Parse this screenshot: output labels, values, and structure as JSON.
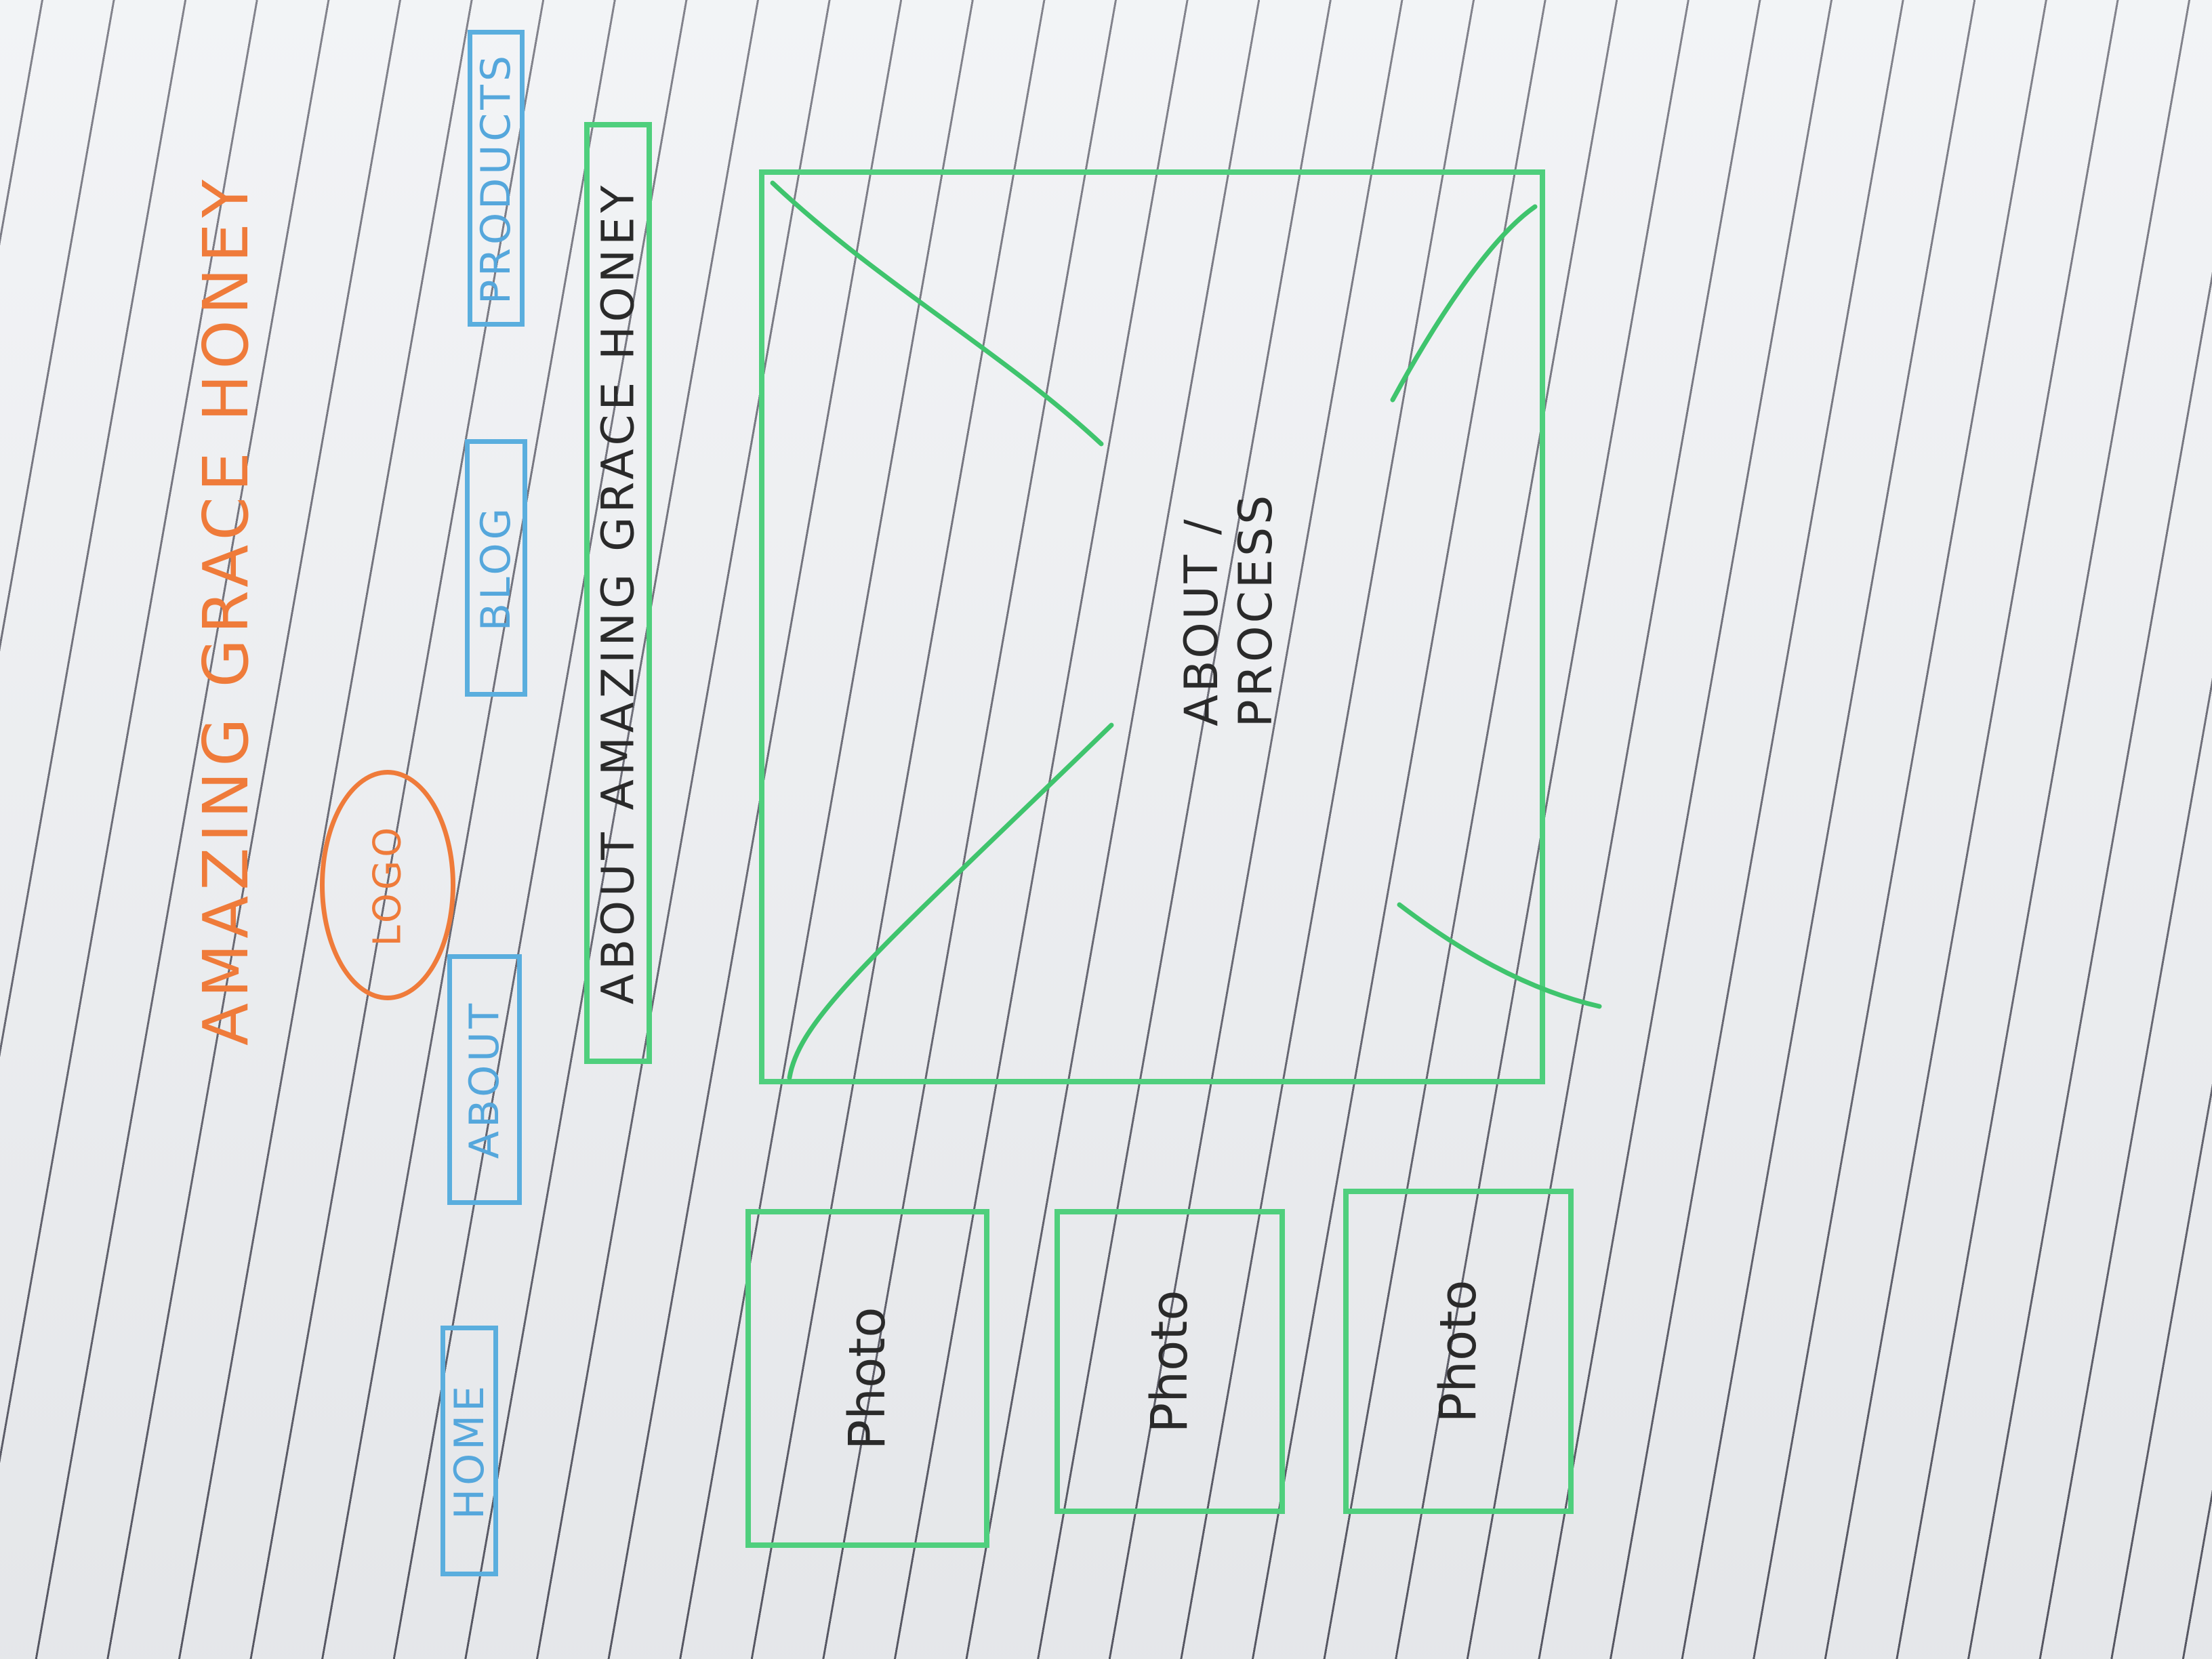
{
  "site": {
    "title": "AMAZING GRACE HONEY",
    "logo_label": "LOGO"
  },
  "nav": [
    {
      "label": "HOME"
    },
    {
      "label": "ABOUT"
    },
    {
      "label": "BLOG"
    },
    {
      "label": "PRODUCTS"
    }
  ],
  "banner": {
    "label": "ABOUT AMAZING GRACE HONEY"
  },
  "hero": {
    "line1": "ABOUT /",
    "line2": "PROCESS"
  },
  "photos": [
    {
      "label": "Photo"
    },
    {
      "label": "Photo"
    },
    {
      "label": "Photo"
    }
  ],
  "colors": {
    "title": "#ef7b3a",
    "nav": "#55a7dc",
    "content_boxes": "#4fcf7d",
    "ink": "#2a2a2a"
  }
}
